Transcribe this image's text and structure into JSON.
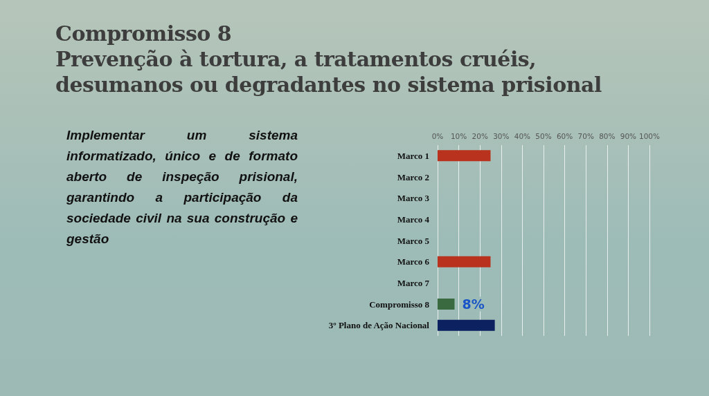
{
  "chart_data": {
    "type": "bar",
    "orientation": "horizontal",
    "title": "Compromisso 8",
    "subtitle": "Prevenção à tortura, a tratamentos cruéis, desumanos ou degradantes no sistema prisional",
    "annotations": [
      "Implementar um sistema informatizado, único e de formato aberto de inspeção prisional, garantindo a participação da sociedade civil na sua construção e gestão"
    ],
    "categories": [
      "Marco 1",
      "Marco 2",
      "Marco 3",
      "Marco 4",
      "Marco 5",
      "Marco 6",
      "Marco 7",
      "Compromisso 8",
      "3º Plano de Ação Nacional"
    ],
    "values": [
      25,
      0,
      0,
      0,
      0,
      25,
      0,
      8,
      27
    ],
    "colors": [
      "#b8321e",
      "#b8321e",
      "#b8321e",
      "#b8321e",
      "#b8321e",
      "#b8321e",
      "#b8321e",
      "#3a6b40",
      "#0c2160"
    ],
    "value_labels": [
      null,
      null,
      null,
      null,
      null,
      null,
      null,
      "8%",
      null
    ],
    "xlim": [
      0,
      100
    ],
    "xticks": [
      {
        "value": 0,
        "label": "0%"
      },
      {
        "value": 10,
        "label": "10%"
      },
      {
        "value": 20,
        "label": "20%"
      },
      {
        "value": 30,
        "label": "30%"
      },
      {
        "value": 40,
        "label": "40%"
      },
      {
        "value": 50,
        "label": "50%"
      },
      {
        "value": 60,
        "label": "60%"
      },
      {
        "value": 70,
        "label": "70%"
      },
      {
        "value": 80,
        "label": "80%"
      },
      {
        "value": 90,
        "label": "90%"
      },
      {
        "value": 100,
        "label": "100%"
      }
    ],
    "grid": "x"
  }
}
